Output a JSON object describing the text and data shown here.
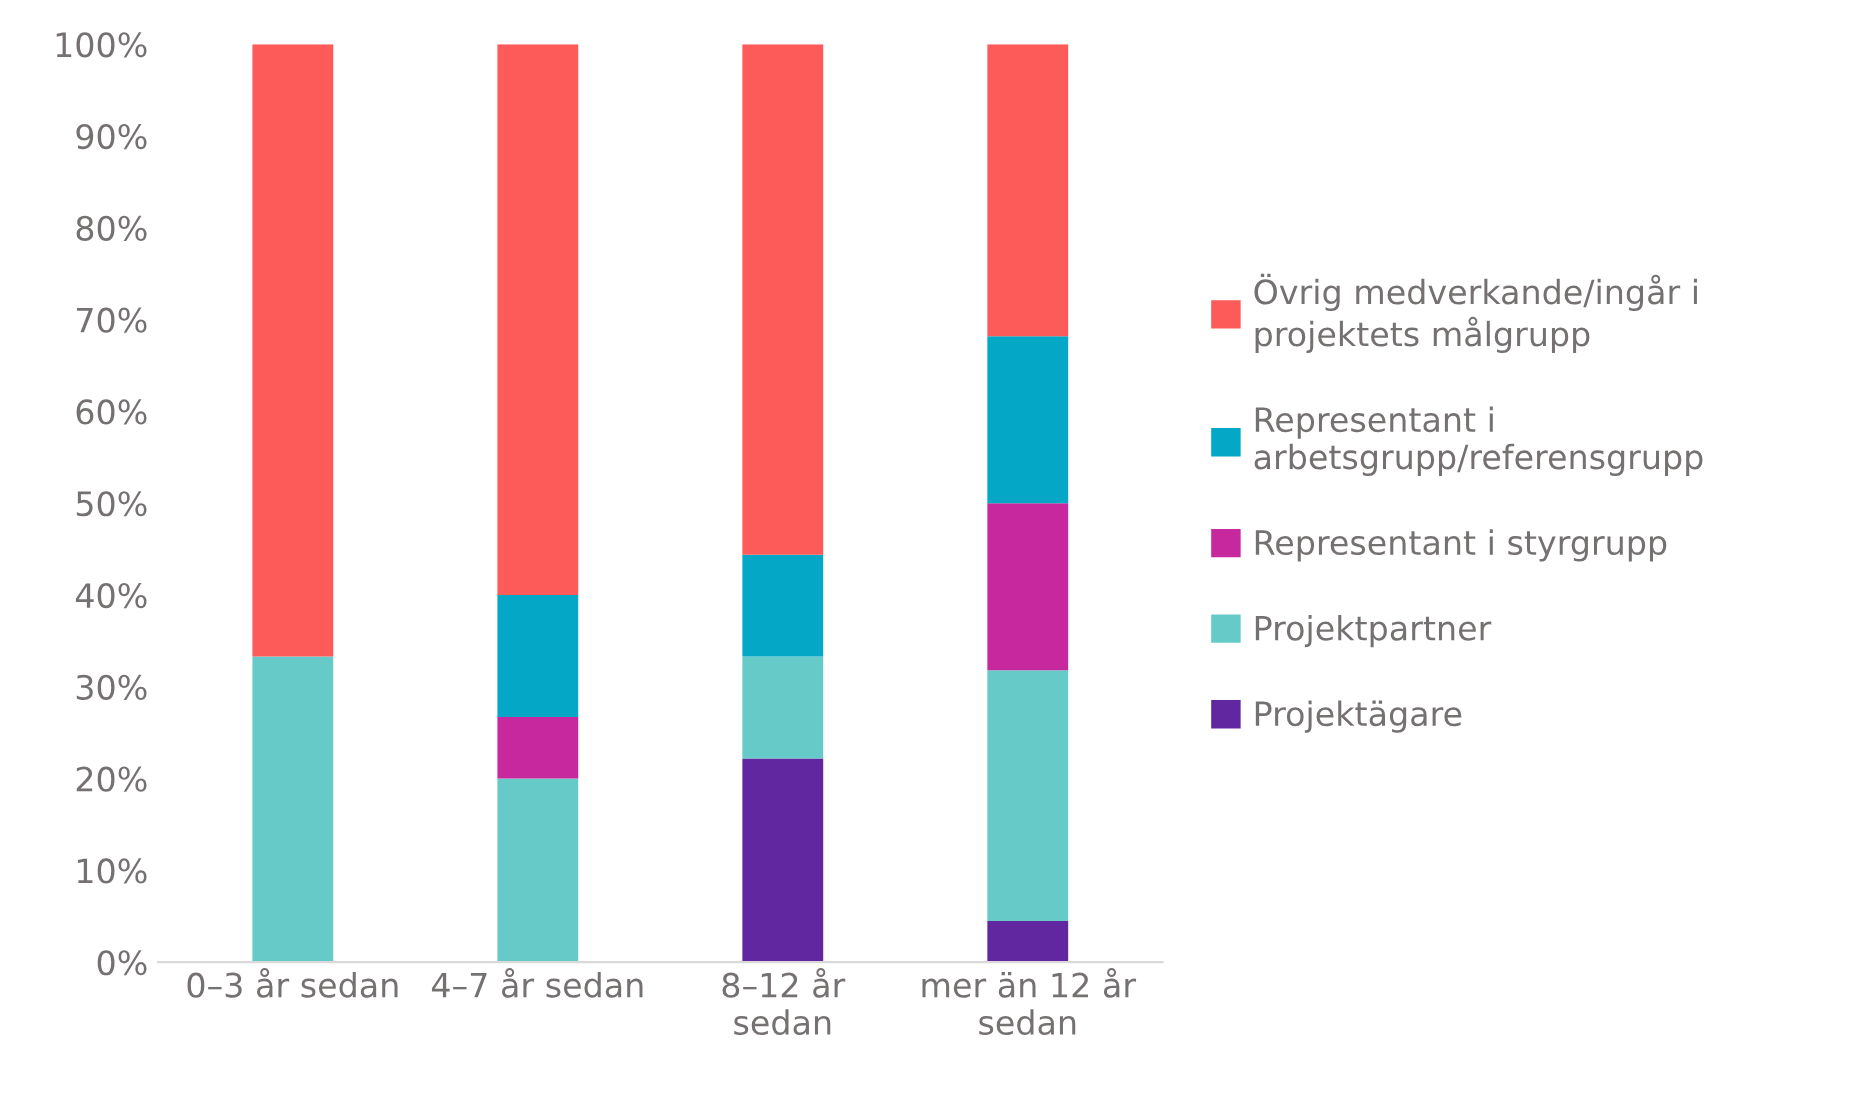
{
  "chart_data": {
    "type": "bar",
    "stacked": true,
    "categories": [
      "0–3 år sedan",
      "4–7 år sedan",
      "8–12 år\nsedan",
      "mer än 12 år\nsedan"
    ],
    "series": [
      {
        "name": "Projektägare",
        "color": "#6127a0",
        "values": [
          0,
          0,
          22.2,
          4.5
        ]
      },
      {
        "name": "Projektpartner",
        "color": "#66cbc8",
        "values": [
          33.3,
          20.0,
          11.1,
          27.3
        ]
      },
      {
        "name": "Representant i styrgrupp",
        "color": "#c8289e",
        "values": [
          0,
          6.7,
          0,
          18.2
        ]
      },
      {
        "name": "Representant i\narbetsgrupp/referensgrupp",
        "color": "#04a8c6",
        "values": [
          0,
          13.3,
          11.1,
          18.2
        ]
      },
      {
        "name": "Övrig medverkande/ingår i\nprojektets målgrupp",
        "color": "#fd5a5a",
        "values": [
          66.7,
          60.0,
          55.6,
          31.8
        ]
      }
    ],
    "ylim": [
      0,
      100
    ],
    "yticks": [
      {
        "value": 0,
        "label": "0%"
      },
      {
        "value": 10,
        "label": "10%"
      },
      {
        "value": 20,
        "label": "20%"
      },
      {
        "value": 30,
        "label": "30%"
      },
      {
        "value": 40,
        "label": "40%"
      },
      {
        "value": 50,
        "label": "50%"
      },
      {
        "value": 60,
        "label": "60%"
      },
      {
        "value": 70,
        "label": "70%"
      },
      {
        "value": 80,
        "label": "80%"
      },
      {
        "value": 90,
        "label": "90%"
      },
      {
        "value": 100,
        "label": "100%"
      }
    ],
    "grid": false,
    "legend": "right"
  }
}
